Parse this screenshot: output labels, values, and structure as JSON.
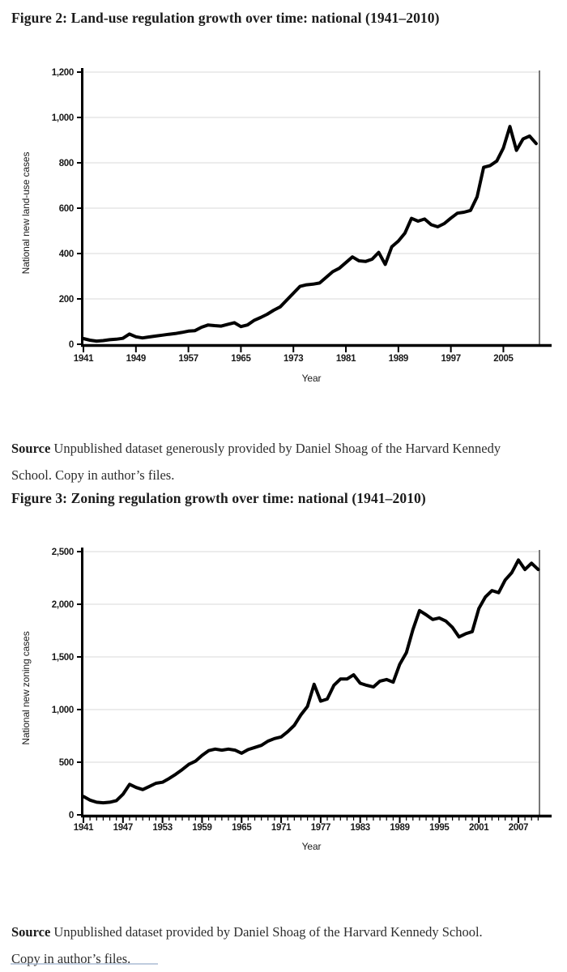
{
  "figure2": {
    "title": "Figure 2: Land-use regulation growth over time: national (1941–2010)",
    "source_label": "Source",
    "source_text": " Unpublished dataset generously provided by Daniel Shoag of the Harvard Kennedy School. Copy in author’s files."
  },
  "figure3": {
    "title": "Figure 3: Zoning regulation growth over time: national (1941–2010)",
    "source_label": "Source",
    "source_text": " Unpublished dataset provided by Daniel Shoag of the Harvard Kennedy School. Copy in author’s files."
  },
  "chart_data": [
    {
      "type": "line",
      "title": "Figure 2: Land-use regulation growth over time: national (1941–2010)",
      "xlabel": "Year",
      "ylabel": "National new land-use cases",
      "x_start": 1941,
      "x_step": 1,
      "x_end": 2010,
      "x_range": [
        1941,
        2010.5
      ],
      "ylim": [
        0,
        1200
      ],
      "ytick_step": 200,
      "ytick_labels": [
        "0",
        "200",
        "400",
        "600",
        "800",
        "1,000",
        "1,200"
      ],
      "xtick_years": [
        1941,
        1949,
        1957,
        1965,
        1973,
        1981,
        1989,
        1997,
        2005
      ],
      "xtick_labels": [
        "1941",
        "1949",
        "1957",
        "1965",
        "1973",
        "1981",
        "1989",
        "1997",
        "2005"
      ],
      "minor_xticks": false,
      "grid": true,
      "legend": "none",
      "line_color": "#000000",
      "grid_color": "#d9d9d9",
      "values": [
        25,
        18,
        14,
        16,
        20,
        22,
        26,
        45,
        33,
        28,
        32,
        36,
        40,
        44,
        47,
        52,
        58,
        60,
        75,
        85,
        82,
        80,
        88,
        95,
        78,
        85,
        105,
        118,
        132,
        150,
        165,
        195,
        225,
        255,
        262,
        265,
        270,
        295,
        320,
        335,
        360,
        385,
        368,
        365,
        375,
        405,
        352,
        430,
        455,
        490,
        555,
        543,
        552,
        527,
        518,
        532,
        556,
        578,
        582,
        590,
        650,
        780,
        788,
        808,
        865,
        960,
        855,
        905,
        918,
        885
      ]
    },
    {
      "type": "line",
      "title": "Figure 3: Zoning regulation growth over time: national (1941–2010)",
      "xlabel": "Year",
      "ylabel": "National new zoning cases",
      "x_start": 1941,
      "x_step": 1,
      "x_end": 2010,
      "x_range": [
        1941,
        2010.2
      ],
      "ylim": [
        0,
        2500
      ],
      "ytick_step": 500,
      "ytick_labels": [
        "0",
        "500",
        "1,000",
        "1,500",
        "2,000",
        "2,500"
      ],
      "xtick_years": [
        1941,
        1947,
        1953,
        1959,
        1965,
        1971,
        1977,
        1983,
        1989,
        1995,
        2001,
        2007
      ],
      "xtick_labels": [
        "1941",
        "1947",
        "1953",
        "1959",
        "1965",
        "1971",
        "1977",
        "1983",
        "1989",
        "1995",
        "2001",
        "2007"
      ],
      "minor_xticks": true,
      "grid": true,
      "legend": "none",
      "line_color": "#000000",
      "grid_color": "#d9d9d9",
      "values": [
        175,
        140,
        120,
        115,
        120,
        135,
        195,
        290,
        260,
        240,
        270,
        300,
        310,
        345,
        385,
        430,
        480,
        510,
        565,
        610,
        625,
        615,
        625,
        615,
        585,
        620,
        640,
        660,
        700,
        725,
        740,
        790,
        850,
        950,
        1030,
        1240,
        1080,
        1100,
        1230,
        1290,
        1290,
        1330,
        1250,
        1230,
        1215,
        1270,
        1285,
        1260,
        1430,
        1540,
        1760,
        1940,
        1900,
        1855,
        1870,
        1840,
        1780,
        1690,
        1720,
        1740,
        1960,
        2070,
        2130,
        2110,
        2230,
        2300,
        2420,
        2330,
        2390,
        2330
      ]
    }
  ]
}
